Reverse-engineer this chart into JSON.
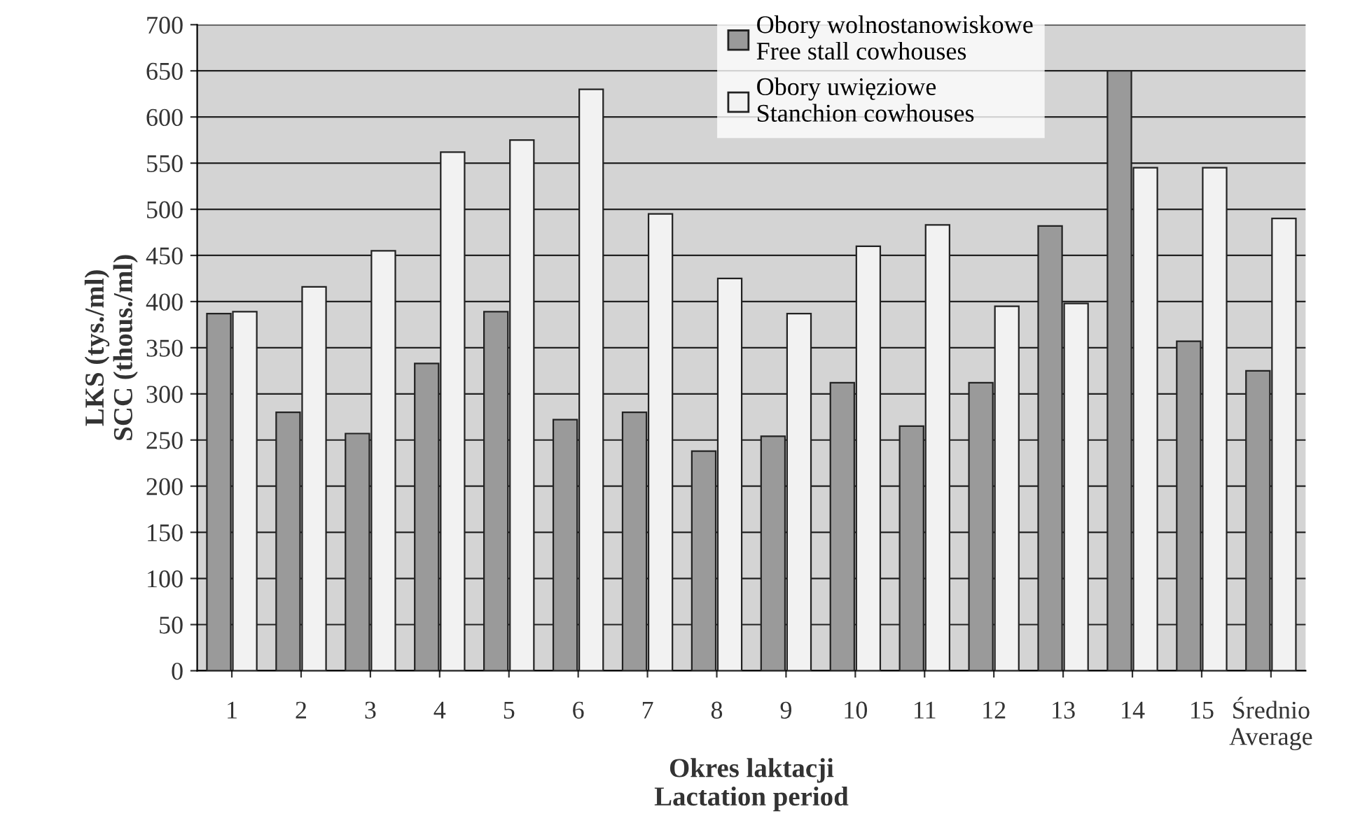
{
  "chart_data": {
    "type": "bar",
    "xlabel": "Okres laktacji\nLactation period",
    "ylabel": "LKS (tys./ml)\nSCC (thous./ml)",
    "categories": [
      "1",
      "2",
      "3",
      "4",
      "5",
      "6",
      "7",
      "8",
      "9",
      "10",
      "11",
      "12",
      "13",
      "14",
      "15",
      "Średnio\nAverage"
    ],
    "series": [
      {
        "name": "Obory wolnostanowiskowe\nFree stall cowhouses",
        "color": "#9a9a9a",
        "values": [
          387,
          280,
          257,
          333,
          389,
          272,
          280,
          238,
          254,
          312,
          265,
          312,
          482,
          650,
          357,
          325
        ]
      },
      {
        "name": "Obory uwięziowe\nStanchion cowhouses",
        "color": "#f2f2f2",
        "values": [
          389,
          416,
          455,
          562,
          575,
          630,
          495,
          425,
          387,
          460,
          483,
          395,
          398,
          545,
          545,
          490
        ]
      }
    ],
    "ylim": [
      0,
      700
    ],
    "yticks": [
      0,
      50,
      100,
      150,
      200,
      250,
      300,
      350,
      400,
      450,
      500,
      550,
      600,
      650,
      700
    ],
    "grid": "y",
    "legend": "top right"
  }
}
